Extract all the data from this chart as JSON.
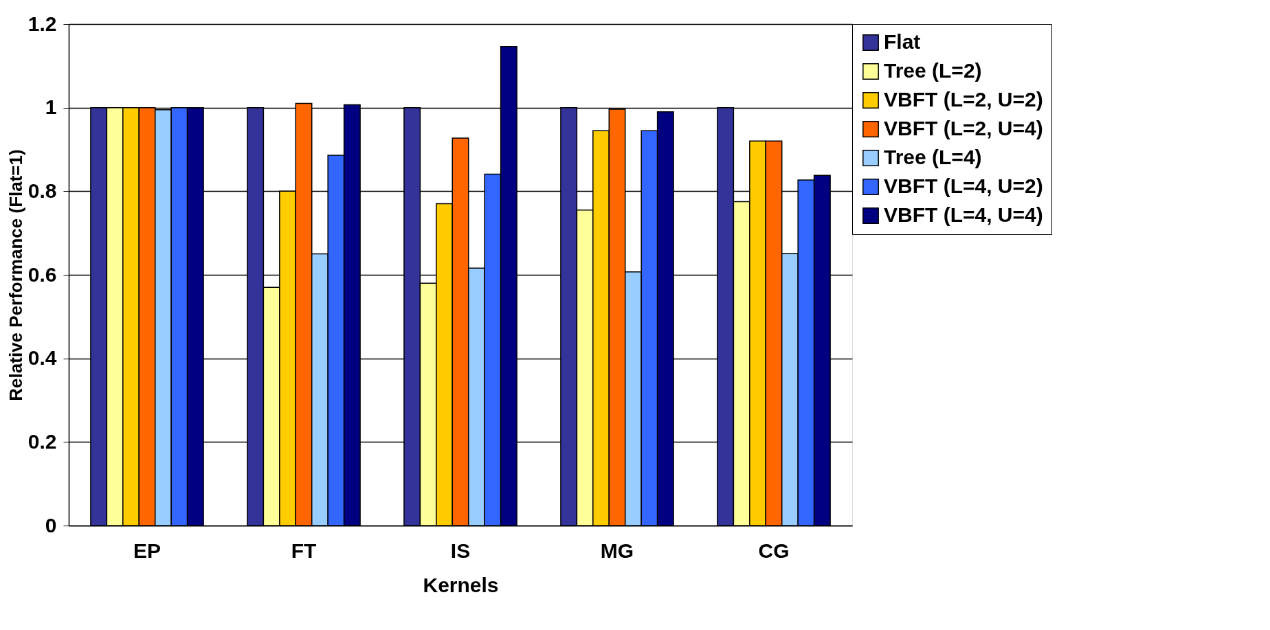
{
  "chart_data": {
    "type": "bar",
    "xlabel": "Kernels",
    "ylabel": "Relative Performance (Flat=1)",
    "categories": [
      "EP",
      "FT",
      "IS",
      "MG",
      "CG"
    ],
    "series": [
      {
        "name": "Flat",
        "color": "#333399",
        "values": [
          1.0,
          1.0,
          1.0,
          1.0,
          1.0
        ]
      },
      {
        "name": "Tree (L=2)",
        "color": "#ffff99",
        "values": [
          1.0,
          0.57,
          0.58,
          0.755,
          0.775
        ]
      },
      {
        "name": "VBFT (L=2, U=2)",
        "color": "#ffcc00",
        "values": [
          1.0,
          0.8,
          0.77,
          0.945,
          0.92
        ]
      },
      {
        "name": "VBFT (L=2, U=4)",
        "color": "#ff6600",
        "values": [
          1.0,
          1.01,
          0.927,
          0.996,
          0.92
        ]
      },
      {
        "name": "Tree (L=4)",
        "color": "#99ccff",
        "values": [
          0.995,
          0.65,
          0.616,
          0.607,
          0.651
        ]
      },
      {
        "name": "VBFT (L=4, U=2)",
        "color": "#3366ff",
        "values": [
          1.0,
          0.886,
          0.841,
          0.945,
          0.827
        ]
      },
      {
        "name": "VBFT (L=4, U=4)",
        "color": "#000080",
        "values": [
          1.0,
          1.007,
          1.146,
          0.99,
          0.838
        ]
      }
    ],
    "ylim": [
      0,
      1.2
    ],
    "yticks": [
      0,
      {
        "value": 0.2,
        "label": "0.2"
      },
      {
        "value": 0.4,
        "label": "0.4"
      },
      {
        "value": 0.6,
        "label": "0.6"
      },
      {
        "value": 0.8,
        "label": "0.8"
      },
      1,
      {
        "value": 1.2,
        "label": "1.2"
      }
    ],
    "grid": "y",
    "legend": "right"
  }
}
